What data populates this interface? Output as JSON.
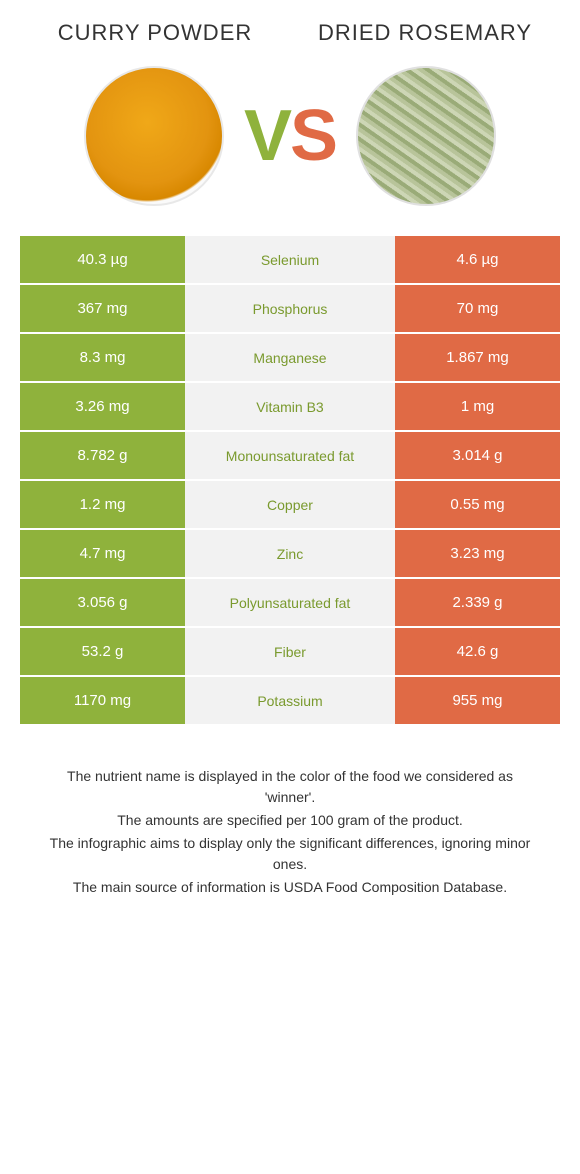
{
  "colors": {
    "green": "#8fb23c",
    "orange": "#e06a45",
    "mid_bg": "#f2f2f2",
    "mid_text_green": "#7a9a2e",
    "mid_text_orange": "#d05a38"
  },
  "header": {
    "left_title": "CURRY POWDER",
    "right_title": "DRIED ROSEMARY"
  },
  "vs": {
    "v": "V",
    "s": "S"
  },
  "rows": [
    {
      "left": "40.3 µg",
      "label": "Selenium",
      "right": "4.6 µg",
      "winner": "left"
    },
    {
      "left": "367 mg",
      "label": "Phosphorus",
      "right": "70 mg",
      "winner": "left"
    },
    {
      "left": "8.3 mg",
      "label": "Manganese",
      "right": "1.867 mg",
      "winner": "left"
    },
    {
      "left": "3.26 mg",
      "label": "Vitamin B3",
      "right": "1 mg",
      "winner": "left"
    },
    {
      "left": "8.782 g",
      "label": "Monounsaturated fat",
      "right": "3.014 g",
      "winner": "left"
    },
    {
      "left": "1.2 mg",
      "label": "Copper",
      "right": "0.55 mg",
      "winner": "left"
    },
    {
      "left": "4.7 mg",
      "label": "Zinc",
      "right": "3.23 mg",
      "winner": "left"
    },
    {
      "left": "3.056 g",
      "label": "Polyunsaturated fat",
      "right": "2.339 g",
      "winner": "left"
    },
    {
      "left": "53.2 g",
      "label": "Fiber",
      "right": "42.6 g",
      "winner": "left"
    },
    {
      "left": "1170 mg",
      "label": "Potassium",
      "right": "955 mg",
      "winner": "left"
    }
  ],
  "footer": {
    "line1": "The nutrient name is displayed in the color of the food we considered as 'winner'.",
    "line2": "The amounts are specified per 100 gram of the product.",
    "line3": "The infographic aims to display only the significant differences, ignoring minor ones.",
    "line4": "The main source of information is USDA Food Composition Database."
  }
}
